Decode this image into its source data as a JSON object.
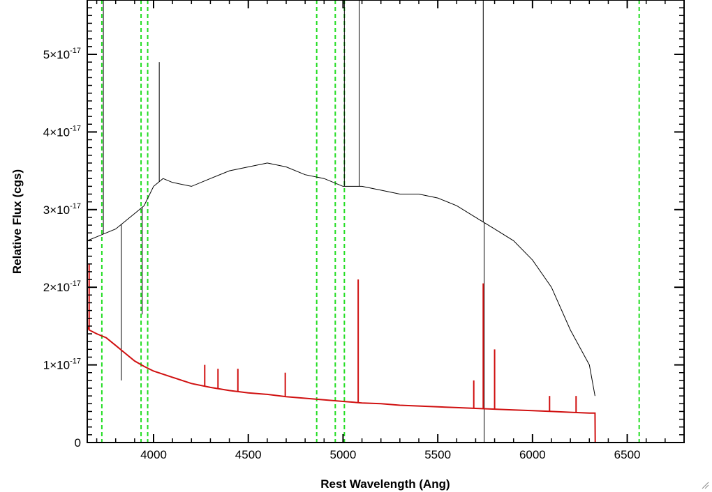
{
  "chart_data": {
    "type": "line",
    "xlabel": "Rest Wavelength (Ang)",
    "ylabel": "Relative Flux (cgs)",
    "xlim": [
      3650,
      6800
    ],
    "ylim": [
      0,
      5.7e-17
    ],
    "x_ticks": [
      {
        "value": 4000,
        "label": "4000"
      },
      {
        "value": 4500,
        "label": "4500"
      },
      {
        "value": 5000,
        "label": "5000"
      },
      {
        "value": 5500,
        "label": "5500"
      },
      {
        "value": 6000,
        "label": "6000"
      },
      {
        "value": 6500,
        "label": "6500"
      }
    ],
    "y_ticks": [
      {
        "value": 0,
        "mantissa": "0",
        "exp": ""
      },
      {
        "value": 1e-17,
        "mantissa": "1×10",
        "exp": "-17"
      },
      {
        "value": 2e-17,
        "mantissa": "2×10",
        "exp": "-17"
      },
      {
        "value": 3e-17,
        "mantissa": "3×10",
        "exp": "-17"
      },
      {
        "value": 4e-17,
        "mantissa": "4×10",
        "exp": "-17"
      },
      {
        "value": 5e-17,
        "mantissa": "5×10",
        "exp": "-17"
      }
    ],
    "reference_lines": [
      3727,
      3934,
      3969,
      4861,
      4959,
      5007,
      6563
    ],
    "series": [
      {
        "color": "#000000",
        "x": [
          3650,
          3700,
          3750,
          3800,
          3850,
          3900,
          3950,
          4000,
          4050,
          4100,
          4200,
          4300,
          4400,
          4500,
          4600,
          4700,
          4800,
          4900,
          5000,
          5100,
          5200,
          5300,
          5400,
          5500,
          5600,
          5700,
          5800,
          5900,
          6000,
          6100,
          6200,
          6300,
          6330
        ],
        "y": [
          2.6e-17,
          2.65e-17,
          2.7e-17,
          2.75e-17,
          2.85e-17,
          2.95e-17,
          3.05e-17,
          3.3e-17,
          3.4e-17,
          3.35e-17,
          3.3e-17,
          3.4e-17,
          3.5e-17,
          3.55e-17,
          3.6e-17,
          3.55e-17,
          3.45e-17,
          3.4e-17,
          3.3e-17,
          3.3e-17,
          3.25e-17,
          3.2e-17,
          3.2e-17,
          3.15e-17,
          3.05e-17,
          2.9e-17,
          2.75e-17,
          2.6e-17,
          2.35e-17,
          2e-17,
          1.45e-17,
          1e-17,
          6e-18
        ],
        "spikes": [
          {
            "x": 3735,
            "y": 5.7e-17
          },
          {
            "x": 3830,
            "y": 8e-18
          },
          {
            "x": 3940,
            "y": 1.65e-17
          },
          {
            "x": 4030,
            "y": 4.9e-17
          },
          {
            "x": 5007,
            "y": 5.7e-17
          },
          {
            "x": 5085,
            "y": 5.7e-17
          },
          {
            "x": 5740,
            "y": 5.7e-17
          },
          {
            "x": 5745,
            "y": 0
          }
        ]
      },
      {
        "color": "#d01010",
        "x": [
          3650,
          3660,
          3700,
          3750,
          3800,
          3850,
          3900,
          3950,
          4000,
          4100,
          4200,
          4300,
          4400,
          4500,
          4600,
          4700,
          4800,
          4900,
          5000,
          5100,
          5200,
          5300,
          5400,
          5500,
          5600,
          5700,
          5800,
          5900,
          6000,
          6100,
          6200,
          6300,
          6330,
          6331,
          6800
        ],
        "y": [
          1.5e-17,
          1.45e-17,
          1.4e-17,
          1.35e-17,
          1.25e-17,
          1.15e-17,
          1.05e-17,
          9.8e-18,
          9.2e-18,
          8.4e-18,
          7.6e-18,
          7.1e-18,
          6.7e-18,
          6.4e-18,
          6.2e-18,
          5.9e-18,
          5.7e-18,
          5.5e-18,
          5.3e-18,
          5.1e-18,
          5e-18,
          4.8e-18,
          4.7e-18,
          4.6e-18,
          4.5e-18,
          4.4e-18,
          4.3e-18,
          4.2e-18,
          4.1e-18,
          4e-18,
          3.9e-18,
          3.8e-18,
          3.8e-18,
          0,
          0
        ],
        "spikes": [
          {
            "x": 3660,
            "y": 2.3e-17
          },
          {
            "x": 4270,
            "y": 1e-17
          },
          {
            "x": 4340,
            "y": 9.5e-18
          },
          {
            "x": 4445,
            "y": 9.5e-18
          },
          {
            "x": 4695,
            "y": 9e-18
          },
          {
            "x": 5080,
            "y": 2.1e-17
          },
          {
            "x": 5740,
            "y": 2.05e-17
          },
          {
            "x": 5800,
            "y": 1.2e-17
          },
          {
            "x": 5690,
            "y": 8e-18
          },
          {
            "x": 6090,
            "y": 6e-18
          },
          {
            "x": 6230,
            "y": 6e-18
          }
        ]
      }
    ]
  }
}
